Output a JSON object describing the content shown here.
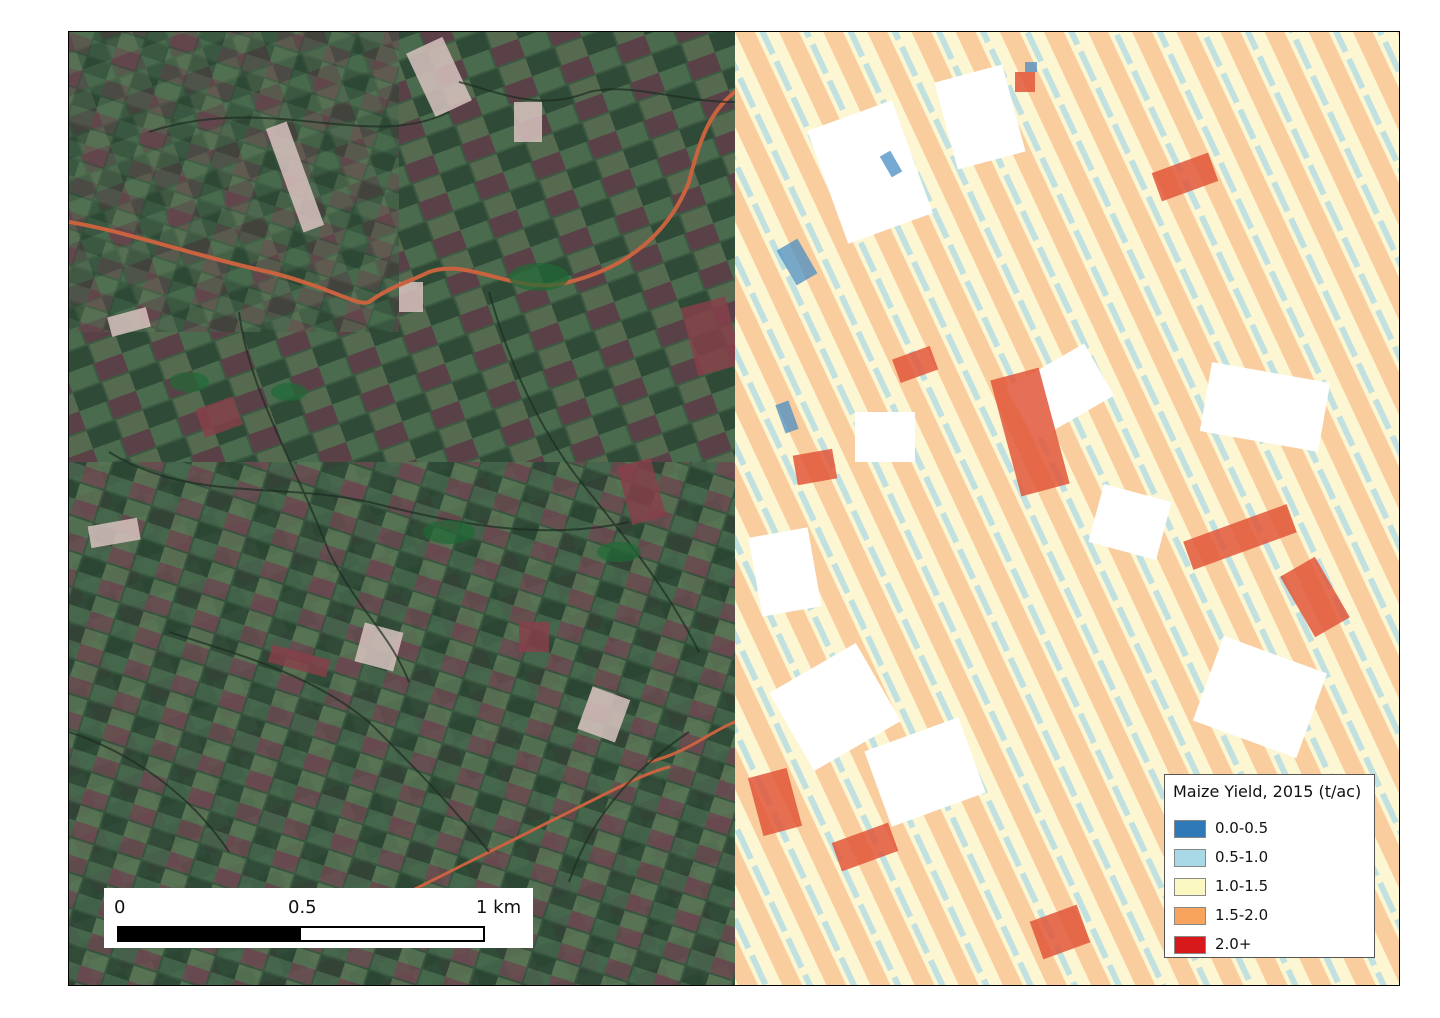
{
  "scale_bar": {
    "labels": [
      "0",
      "0.5",
      "1 km"
    ]
  },
  "legend": {
    "title": "Maize Yield, 2015 (t/ac)",
    "items": [
      {
        "label": "0.0-0.5",
        "color": "#2f79b9"
      },
      {
        "label": "0.5-1.0",
        "color": "#a9d9e6"
      },
      {
        "label": "1.0-1.5",
        "color": "#fcf8c2"
      },
      {
        "label": "1.5-2.0",
        "color": "#f9a45c"
      },
      {
        "label": "2.0+",
        "color": "#d7191c"
      }
    ]
  },
  "colors": {
    "satellite_base": "#3f5a45",
    "road": "#c9623f",
    "yield_background": "#fbf7ea"
  }
}
